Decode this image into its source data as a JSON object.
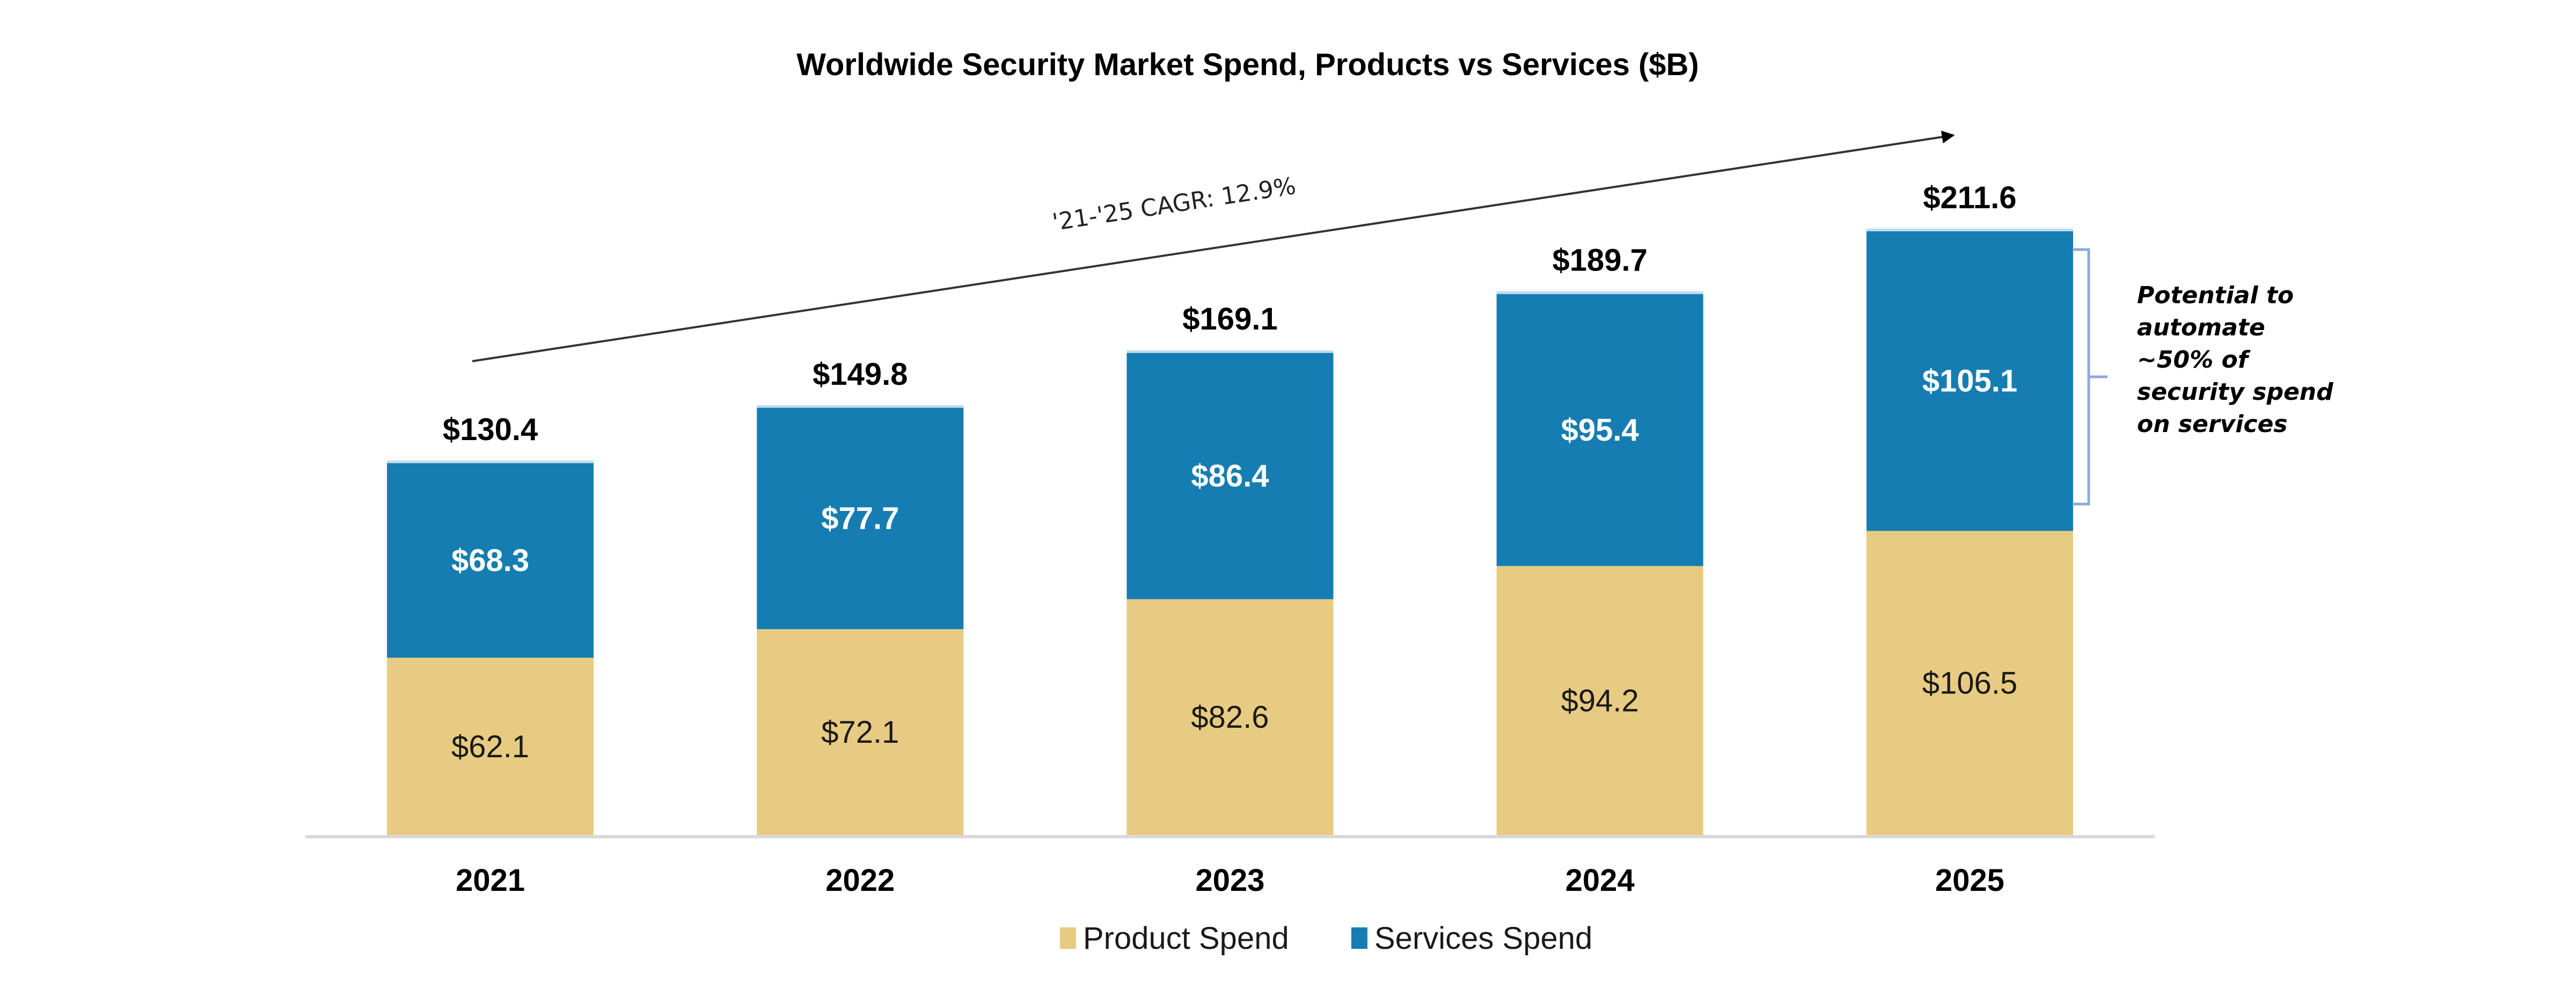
{
  "chart_data": {
    "type": "bar",
    "stacked": true,
    "title": "Worldwide Security Market Spend, Products vs Services ($B)",
    "xlabel": "",
    "ylabel": "",
    "ylim": [
      0,
      211.6
    ],
    "grid": false,
    "legend_position": "bottom-center",
    "categories": [
      "2021",
      "2022",
      "2023",
      "2024",
      "2025"
    ],
    "series": [
      {
        "name": "Product Spend",
        "color": "#E8CB82",
        "values": [
          62.1,
          72.1,
          82.6,
          94.2,
          106.5
        ],
        "labels": [
          "$62.1",
          "$72.1",
          "$82.6",
          "$94.2",
          "$106.5"
        ]
      },
      {
        "name": "Services Spend",
        "color": "#157DB1",
        "values": [
          68.3,
          77.7,
          86.4,
          95.4,
          105.1
        ],
        "labels": [
          "$68.3",
          "$77.7",
          "$86.4",
          "$95.4",
          "$105.1"
        ]
      }
    ],
    "totals": [
      130.4,
      149.8,
      169.1,
      189.7,
      211.6
    ],
    "total_labels": [
      "$130.4",
      "$149.8",
      "$169.1",
      "$189.7",
      "$211.6"
    ],
    "annotations": {
      "cagr_arrow": {
        "text": "'21-'25 CAGR: 12.9%",
        "from_category": "2021",
        "to_category": "2025"
      },
      "bracket_note": {
        "target_category": "2025",
        "target_series": "Services Spend",
        "lines": [
          "Potential to",
          "automate",
          "~50% of",
          "security spend",
          "on services"
        ],
        "color": "#8FA9DC"
      }
    }
  }
}
